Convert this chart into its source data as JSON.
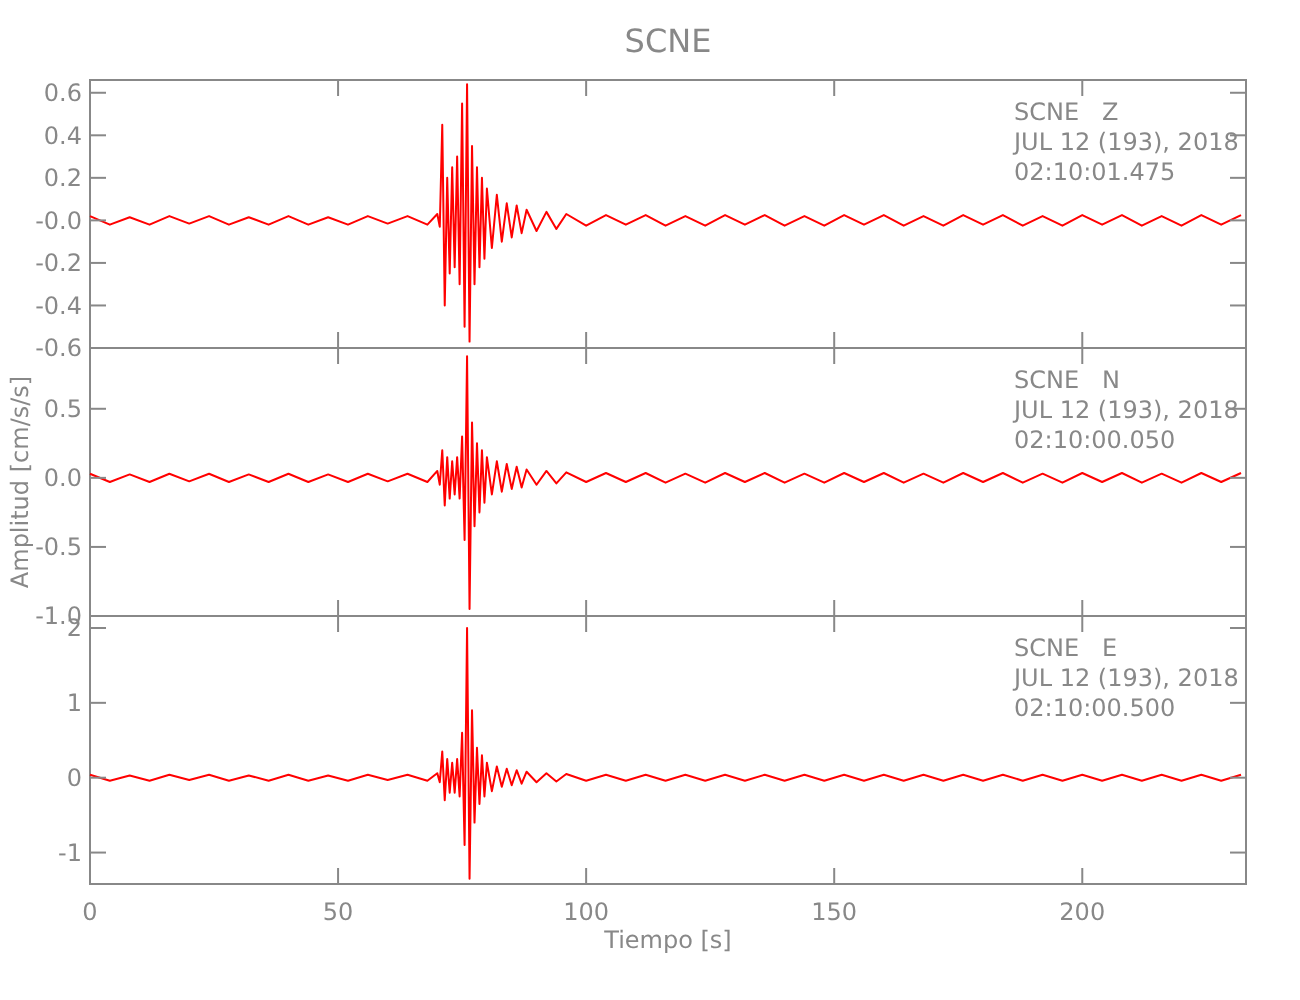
{
  "chart_data": [
    {
      "type": "line",
      "title": "SCNE",
      "xlim": [
        0,
        233
      ],
      "xticks": [
        0,
        50,
        100,
        150,
        200
      ],
      "ylim": [
        -0.6,
        0.66
      ],
      "yticks": [
        {
          "value": -0.6,
          "label": "-0.6"
        },
        {
          "value": -0.4,
          "label": "-0.4"
        },
        {
          "value": -0.2,
          "label": "-0.2"
        },
        {
          "value": 0,
          "label": "-0.0"
        },
        {
          "value": 0.2,
          "label": "0.2"
        },
        {
          "value": 0.4,
          "label": "0.4"
        },
        {
          "value": 0.6,
          "label": "0.6"
        }
      ],
      "tick_labels": "y",
      "annotations": [
        "SCNE   Z",
        "JUL 12 (193), 2018",
        "02:10:01.475"
      ],
      "x": [
        0,
        4,
        8,
        12,
        16,
        20,
        24,
        28,
        32,
        36,
        40,
        44,
        48,
        52,
        56,
        60,
        64,
        68,
        70,
        70.5,
        71,
        71.5,
        72,
        72.5,
        73,
        73.5,
        74,
        74.5,
        75,
        75.5,
        76,
        76.5,
        77,
        77.5,
        78,
        78.5,
        79,
        79.5,
        80,
        81,
        82,
        83,
        84,
        85,
        86,
        87,
        88,
        90,
        92,
        94,
        96,
        100,
        104,
        108,
        112,
        116,
        120,
        124,
        128,
        132,
        136,
        140,
        144,
        148,
        152,
        156,
        160,
        164,
        168,
        172,
        176,
        180,
        184,
        188,
        192,
        196,
        200,
        204,
        208,
        212,
        216,
        220,
        224,
        228,
        232
      ],
      "series": [
        {
          "color": "#ff0000",
          "values": [
            0.02,
            -0.02,
            0.015,
            -0.02,
            0.02,
            -0.015,
            0.02,
            -0.02,
            0.015,
            -0.02,
            0.02,
            -0.02,
            0.015,
            -0.02,
            0.02,
            -0.015,
            0.02,
            -0.02,
            0.03,
            -0.03,
            0.45,
            -0.4,
            0.2,
            -0.25,
            0.25,
            -0.22,
            0.3,
            -0.3,
            0.55,
            -0.5,
            0.64,
            -0.57,
            0.35,
            -0.3,
            0.25,
            -0.22,
            0.2,
            -0.18,
            0.15,
            -0.13,
            0.12,
            -0.1,
            0.08,
            -0.08,
            0.07,
            -0.06,
            0.05,
            -0.05,
            0.04,
            -0.04,
            0.03,
            -0.025,
            0.025,
            -0.02,
            0.025,
            -0.025,
            0.02,
            -0.025,
            0.025,
            -0.02,
            0.025,
            -0.025,
            0.02,
            -0.025,
            0.025,
            -0.02,
            0.025,
            -0.025,
            0.02,
            -0.025,
            0.025,
            -0.02,
            0.025,
            -0.025,
            0.02,
            -0.025,
            0.025,
            -0.02,
            0.025,
            -0.025,
            0.02,
            -0.025,
            0.025,
            -0.02,
            0.025
          ]
        }
      ]
    },
    {
      "type": "line",
      "ylabel": "Amplitud [cm/s/s]",
      "xlim": [
        0,
        233
      ],
      "xticks": [
        0,
        50,
        100,
        150,
        200
      ],
      "ylim": [
        -1.0,
        0.94
      ],
      "yticks": [
        {
          "value": -1,
          "label": "-1.0"
        },
        {
          "value": -0.5,
          "label": "-0.5"
        },
        {
          "value": 0,
          "label": "0.0"
        },
        {
          "value": 0.5,
          "label": "0.5"
        }
      ],
      "tick_labels": "y",
      "annotations": [
        "SCNE   N",
        "JUL 12 (193), 2018",
        "02:10:00.050"
      ],
      "x": [
        0,
        4,
        8,
        12,
        16,
        20,
        24,
        28,
        32,
        36,
        40,
        44,
        48,
        52,
        56,
        60,
        64,
        68,
        70,
        70.5,
        71,
        71.5,
        72,
        72.5,
        73,
        73.5,
        74,
        74.5,
        75,
        75.5,
        76,
        76.5,
        77,
        77.5,
        78,
        78.5,
        79,
        79.5,
        80,
        81,
        82,
        83,
        84,
        85,
        86,
        87,
        88,
        90,
        92,
        94,
        96,
        100,
        104,
        108,
        112,
        116,
        120,
        124,
        128,
        132,
        136,
        140,
        144,
        148,
        152,
        156,
        160,
        164,
        168,
        172,
        176,
        180,
        184,
        188,
        192,
        196,
        200,
        204,
        208,
        212,
        216,
        220,
        224,
        228,
        232
      ],
      "series": [
        {
          "color": "#ff0000",
          "values": [
            0.03,
            -0.03,
            0.025,
            -0.03,
            0.03,
            -0.025,
            0.03,
            -0.03,
            0.025,
            -0.03,
            0.03,
            -0.03,
            0.025,
            -0.03,
            0.03,
            -0.025,
            0.03,
            -0.03,
            0.05,
            -0.05,
            0.2,
            -0.2,
            0.15,
            -0.15,
            0.12,
            -0.12,
            0.15,
            -0.15,
            0.3,
            -0.45,
            0.88,
            -0.95,
            0.4,
            -0.35,
            0.25,
            -0.25,
            0.2,
            -0.18,
            0.15,
            -0.12,
            0.12,
            -0.1,
            0.1,
            -0.08,
            0.08,
            -0.07,
            0.06,
            -0.05,
            0.05,
            -0.04,
            0.04,
            -0.03,
            0.035,
            -0.03,
            0.035,
            -0.035,
            0.03,
            -0.035,
            0.035,
            -0.03,
            0.035,
            -0.035,
            0.03,
            -0.035,
            0.035,
            -0.03,
            0.035,
            -0.035,
            0.03,
            -0.035,
            0.035,
            -0.03,
            0.035,
            -0.035,
            0.03,
            -0.035,
            0.035,
            -0.03,
            0.035,
            -0.035,
            0.03,
            -0.035,
            0.035,
            -0.03,
            0.035
          ]
        }
      ]
    },
    {
      "type": "line",
      "xlabel": "Tiempo [s]",
      "xlim": [
        0,
        233
      ],
      "xticks": [
        0,
        50,
        100,
        150,
        200
      ],
      "ylim": [
        -1.42,
        2.16
      ],
      "yticks": [
        -1,
        0,
        1,
        2
      ],
      "annotations": [
        "SCNE   E",
        "JUL 12 (193), 2018",
        "02:10:00.500"
      ],
      "x": [
        0,
        4,
        8,
        12,
        16,
        20,
        24,
        28,
        32,
        36,
        40,
        44,
        48,
        52,
        56,
        60,
        64,
        68,
        70,
        70.5,
        71,
        71.5,
        72,
        72.5,
        73,
        73.5,
        74,
        74.5,
        75,
        75.5,
        76,
        76.5,
        77,
        77.5,
        78,
        78.5,
        79,
        79.5,
        80,
        81,
        82,
        83,
        84,
        85,
        86,
        87,
        88,
        90,
        92,
        94,
        96,
        100,
        104,
        108,
        112,
        116,
        120,
        124,
        128,
        132,
        136,
        140,
        144,
        148,
        152,
        156,
        160,
        164,
        168,
        172,
        176,
        180,
        184,
        188,
        192,
        196,
        200,
        204,
        208,
        212,
        216,
        220,
        224,
        228,
        232
      ],
      "series": [
        {
          "color": "#ff0000",
          "values": [
            0.04,
            -0.04,
            0.03,
            -0.04,
            0.04,
            -0.03,
            0.04,
            -0.04,
            0.03,
            -0.04,
            0.04,
            -0.04,
            0.03,
            -0.04,
            0.04,
            -0.03,
            0.04,
            -0.04,
            0.06,
            -0.06,
            0.35,
            -0.3,
            0.25,
            -0.2,
            0.2,
            -0.2,
            0.25,
            -0.25,
            0.6,
            -0.9,
            2.0,
            -1.35,
            0.9,
            -0.6,
            0.4,
            -0.35,
            0.3,
            -0.25,
            0.2,
            -0.18,
            0.15,
            -0.12,
            0.12,
            -0.1,
            0.1,
            -0.08,
            0.08,
            -0.06,
            0.06,
            -0.05,
            0.05,
            -0.04,
            0.04,
            -0.04,
            0.04,
            -0.04,
            0.04,
            -0.04,
            0.04,
            -0.04,
            0.04,
            -0.04,
            0.04,
            -0.04,
            0.04,
            -0.04,
            0.04,
            -0.04,
            0.04,
            -0.04,
            0.04,
            -0.04,
            0.04,
            -0.04,
            0.04,
            -0.04,
            0.04,
            -0.04,
            0.04,
            -0.04,
            0.04,
            -0.04,
            0.04,
            -0.04,
            0.04
          ]
        }
      ]
    }
  ]
}
